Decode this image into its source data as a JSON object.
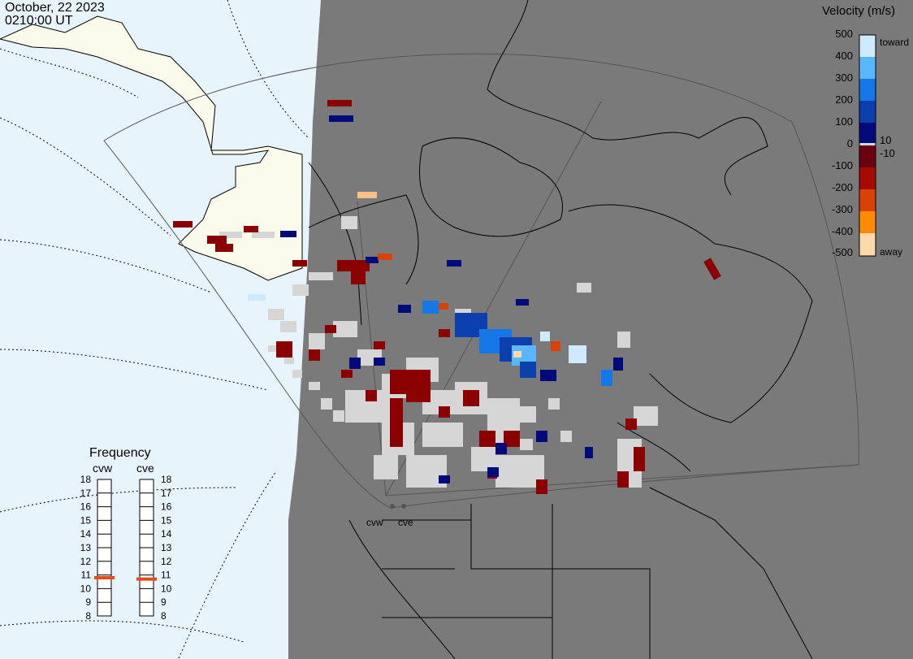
{
  "header": {
    "date": "October, 22 2023",
    "time": "0210:00 UT"
  },
  "colorbar": {
    "title": "Velocity (m/s)",
    "ticks": [
      "500",
      "400",
      "300",
      "200",
      "100",
      "0",
      "-100",
      "-200",
      "-300",
      "-400",
      "-500"
    ],
    "small_ticks": [
      "10",
      "-10"
    ],
    "toward_label": "toward",
    "away_label": "away",
    "stops": [
      "#cfe9ff",
      "#59b7ff",
      "#1479e6",
      "#0b3fae",
      "#000a7a",
      "#6b0010",
      "#a80a00",
      "#d94200",
      "#ff8c00",
      "#ffd9a8"
    ]
  },
  "frequency": {
    "title": "Frequency",
    "scale": [
      "18",
      "17",
      "16",
      "15",
      "14",
      "13",
      "12",
      "11",
      "10",
      "9",
      "8"
    ],
    "stations": [
      {
        "name": "cvw",
        "value_mhz": 10.8
      },
      {
        "name": "cve",
        "value_mhz": 10.7
      }
    ],
    "marker_color": "#e64a19"
  },
  "map_labels": {
    "cvw": "cvw",
    "cve": "cve"
  },
  "colors": {
    "ocean": "#e8f4fb",
    "land_light": "#fbfbec",
    "night": "#7a7a7a",
    "grid": "#9a9a9a"
  }
}
